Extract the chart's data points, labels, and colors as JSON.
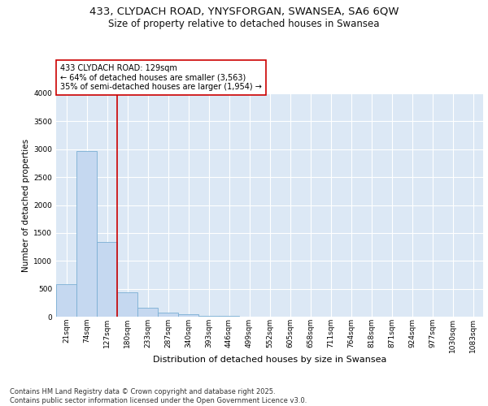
{
  "title": "433, CLYDACH ROAD, YNYSFORGAN, SWANSEA, SA6 6QW",
  "subtitle": "Size of property relative to detached houses in Swansea",
  "xlabel": "Distribution of detached houses by size in Swansea",
  "ylabel": "Number of detached properties",
  "bar_labels": [
    "21sqm",
    "74sqm",
    "127sqm",
    "180sqm",
    "233sqm",
    "287sqm",
    "340sqm",
    "393sqm",
    "446sqm",
    "499sqm",
    "552sqm",
    "605sqm",
    "658sqm",
    "711sqm",
    "764sqm",
    "818sqm",
    "871sqm",
    "924sqm",
    "977sqm",
    "1030sqm",
    "1083sqm"
  ],
  "bar_heights": [
    580,
    2970,
    1340,
    430,
    155,
    75,
    40,
    18,
    8,
    5,
    3,
    2,
    1,
    1,
    1,
    1,
    0,
    0,
    0,
    0,
    0
  ],
  "bar_color": "#c5d8f0",
  "bar_edge_color": "#7aafd4",
  "bg_color": "#dce8f5",
  "grid_color": "#ffffff",
  "annotation_text": "433 CLYDACH ROAD: 129sqm\n← 64% of detached houses are smaller (3,563)\n35% of semi-detached houses are larger (1,954) →",
  "annotation_box_color": "#ffffff",
  "annotation_box_edge": "#cc0000",
  "vline_color": "#cc0000",
  "ylim": [
    0,
    4000
  ],
  "yticks": [
    0,
    500,
    1000,
    1500,
    2000,
    2500,
    3000,
    3500,
    4000
  ],
  "footnote": "Contains HM Land Registry data © Crown copyright and database right 2025.\nContains public sector information licensed under the Open Government Licence v3.0.",
  "title_fontsize": 9.5,
  "subtitle_fontsize": 8.5,
  "xlabel_fontsize": 8,
  "ylabel_fontsize": 7.5,
  "tick_fontsize": 6.5,
  "annot_fontsize": 7,
  "footnote_fontsize": 6
}
